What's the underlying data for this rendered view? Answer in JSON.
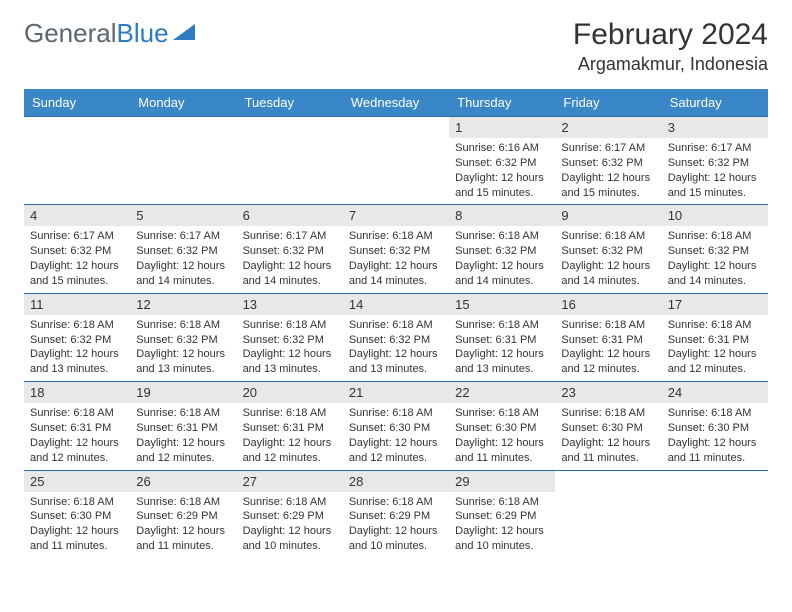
{
  "brand": {
    "part1": "General",
    "part2": "Blue"
  },
  "title": "February 2024",
  "location": "Argamakmur, Indonesia",
  "colors": {
    "header_bg": "#3a87c7",
    "header_text": "#ffffff",
    "daynum_bg": "#e8e8e8",
    "border": "#2f6aa3",
    "text": "#333333",
    "brand_gray": "#5b6770",
    "brand_blue": "#2d7bc0",
    "background": "#ffffff"
  },
  "day_names": [
    "Sunday",
    "Monday",
    "Tuesday",
    "Wednesday",
    "Thursday",
    "Friday",
    "Saturday"
  ],
  "weeks": [
    [
      null,
      null,
      null,
      null,
      {
        "n": "1",
        "sr": "6:16 AM",
        "ss": "6:32 PM",
        "dl": "12 hours and 15 minutes."
      },
      {
        "n": "2",
        "sr": "6:17 AM",
        "ss": "6:32 PM",
        "dl": "12 hours and 15 minutes."
      },
      {
        "n": "3",
        "sr": "6:17 AM",
        "ss": "6:32 PM",
        "dl": "12 hours and 15 minutes."
      }
    ],
    [
      {
        "n": "4",
        "sr": "6:17 AM",
        "ss": "6:32 PM",
        "dl": "12 hours and 15 minutes."
      },
      {
        "n": "5",
        "sr": "6:17 AM",
        "ss": "6:32 PM",
        "dl": "12 hours and 14 minutes."
      },
      {
        "n": "6",
        "sr": "6:17 AM",
        "ss": "6:32 PM",
        "dl": "12 hours and 14 minutes."
      },
      {
        "n": "7",
        "sr": "6:18 AM",
        "ss": "6:32 PM",
        "dl": "12 hours and 14 minutes."
      },
      {
        "n": "8",
        "sr": "6:18 AM",
        "ss": "6:32 PM",
        "dl": "12 hours and 14 minutes."
      },
      {
        "n": "9",
        "sr": "6:18 AM",
        "ss": "6:32 PM",
        "dl": "12 hours and 14 minutes."
      },
      {
        "n": "10",
        "sr": "6:18 AM",
        "ss": "6:32 PM",
        "dl": "12 hours and 14 minutes."
      }
    ],
    [
      {
        "n": "11",
        "sr": "6:18 AM",
        "ss": "6:32 PM",
        "dl": "12 hours and 13 minutes."
      },
      {
        "n": "12",
        "sr": "6:18 AM",
        "ss": "6:32 PM",
        "dl": "12 hours and 13 minutes."
      },
      {
        "n": "13",
        "sr": "6:18 AM",
        "ss": "6:32 PM",
        "dl": "12 hours and 13 minutes."
      },
      {
        "n": "14",
        "sr": "6:18 AM",
        "ss": "6:32 PM",
        "dl": "12 hours and 13 minutes."
      },
      {
        "n": "15",
        "sr": "6:18 AM",
        "ss": "6:31 PM",
        "dl": "12 hours and 13 minutes."
      },
      {
        "n": "16",
        "sr": "6:18 AM",
        "ss": "6:31 PM",
        "dl": "12 hours and 12 minutes."
      },
      {
        "n": "17",
        "sr": "6:18 AM",
        "ss": "6:31 PM",
        "dl": "12 hours and 12 minutes."
      }
    ],
    [
      {
        "n": "18",
        "sr": "6:18 AM",
        "ss": "6:31 PM",
        "dl": "12 hours and 12 minutes."
      },
      {
        "n": "19",
        "sr": "6:18 AM",
        "ss": "6:31 PM",
        "dl": "12 hours and 12 minutes."
      },
      {
        "n": "20",
        "sr": "6:18 AM",
        "ss": "6:31 PM",
        "dl": "12 hours and 12 minutes."
      },
      {
        "n": "21",
        "sr": "6:18 AM",
        "ss": "6:30 PM",
        "dl": "12 hours and 12 minutes."
      },
      {
        "n": "22",
        "sr": "6:18 AM",
        "ss": "6:30 PM",
        "dl": "12 hours and 11 minutes."
      },
      {
        "n": "23",
        "sr": "6:18 AM",
        "ss": "6:30 PM",
        "dl": "12 hours and 11 minutes."
      },
      {
        "n": "24",
        "sr": "6:18 AM",
        "ss": "6:30 PM",
        "dl": "12 hours and 11 minutes."
      }
    ],
    [
      {
        "n": "25",
        "sr": "6:18 AM",
        "ss": "6:30 PM",
        "dl": "12 hours and 11 minutes."
      },
      {
        "n": "26",
        "sr": "6:18 AM",
        "ss": "6:29 PM",
        "dl": "12 hours and 11 minutes."
      },
      {
        "n": "27",
        "sr": "6:18 AM",
        "ss": "6:29 PM",
        "dl": "12 hours and 10 minutes."
      },
      {
        "n": "28",
        "sr": "6:18 AM",
        "ss": "6:29 PM",
        "dl": "12 hours and 10 minutes."
      },
      {
        "n": "29",
        "sr": "6:18 AM",
        "ss": "6:29 PM",
        "dl": "12 hours and 10 minutes."
      },
      null,
      null
    ]
  ],
  "labels": {
    "sunrise": "Sunrise: ",
    "sunset": "Sunset: ",
    "daylight": "Daylight: "
  }
}
